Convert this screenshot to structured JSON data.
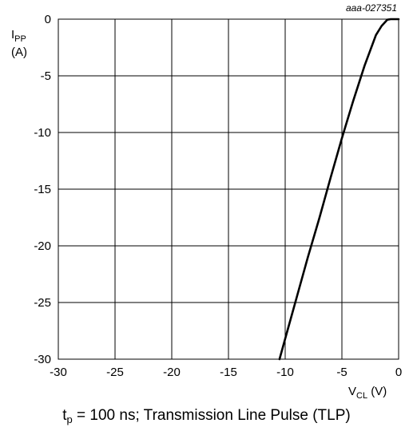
{
  "chart_data": {
    "type": "line",
    "figure_code": "aaa-027351",
    "ylabel": {
      "main": "I",
      "sub": "PP",
      "unit": "(A)"
    },
    "xlabel": {
      "main": "V",
      "sub": "CL",
      "unit": " (V)"
    },
    "xlim": [
      -30,
      0
    ],
    "ylim": [
      -30,
      0
    ],
    "x_ticks": [
      -30,
      -25,
      -20,
      -15,
      -10,
      -5,
      0
    ],
    "y_ticks": [
      0,
      -5,
      -10,
      -15,
      -20,
      -25,
      -30
    ],
    "grid": true,
    "series": [
      {
        "x": [
          -10.5,
          -10.0,
          -9.0,
          -8.0,
          -7.0,
          -6.0,
          -5.0,
          -4.0,
          -3.0,
          -2.0,
          -1.5,
          -1.0,
          -0.7,
          -0.4,
          0.0
        ],
        "y": [
          -30,
          -28.2,
          -24.6,
          -21.0,
          -17.6,
          -14.0,
          -10.5,
          -7.2,
          -4.1,
          -1.4,
          -0.6,
          -0.05,
          0,
          0,
          0
        ]
      }
    ]
  },
  "caption": {
    "t_main": "t",
    "t_sub": "p",
    "text": " = 100 ns; Transmission Line Pulse (TLP)"
  }
}
